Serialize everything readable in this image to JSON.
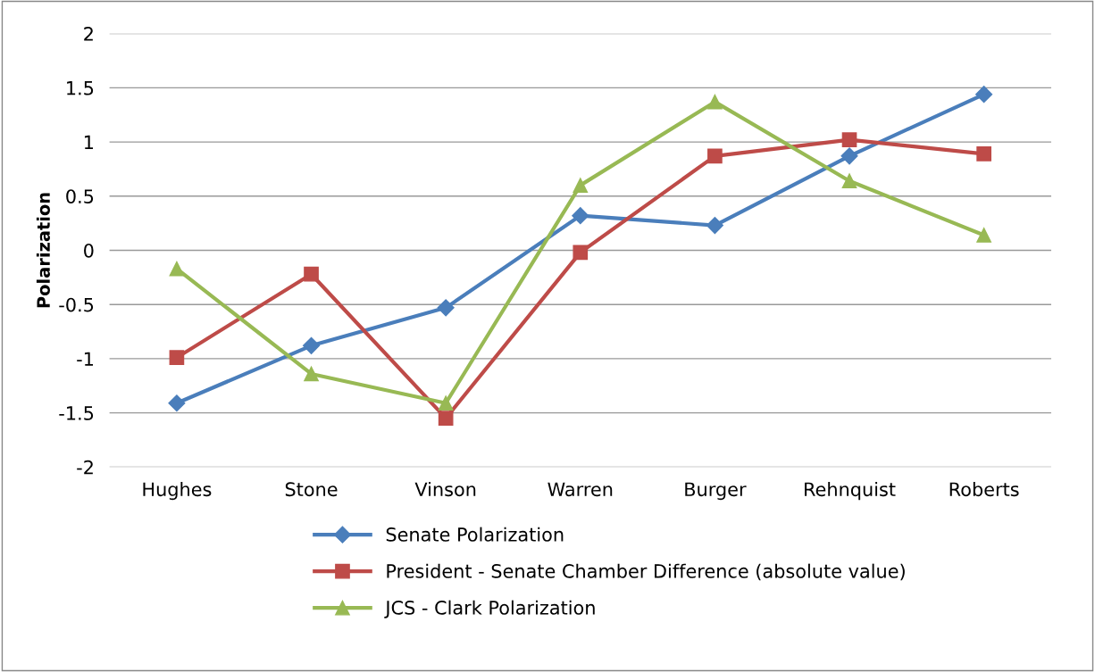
{
  "chart_data": {
    "type": "line",
    "ylabel": "Polarization",
    "categories": [
      "Hughes",
      "Stone",
      "Vinson",
      "Warren",
      "Burger",
      "Rehnquist",
      "Roberts"
    ],
    "series": [
      {
        "name": "Senate Polarization",
        "color": "#4a7ebb",
        "marker": "diamond",
        "values": [
          -1.41,
          -0.88,
          -0.53,
          0.32,
          0.23,
          0.87,
          1.44
        ]
      },
      {
        "name": "President - Senate Chamber Difference (absolute value)",
        "color": "#be4b48",
        "marker": "square",
        "values": [
          -0.99,
          -0.22,
          -1.55,
          -0.02,
          0.87,
          1.02,
          0.89
        ]
      },
      {
        "name": "JCS - Clark Polarization",
        "color": "#98b954",
        "marker": "triangle",
        "values": [
          -0.17,
          -1.14,
          -1.41,
          0.6,
          1.37,
          0.64,
          0.14
        ]
      }
    ],
    "ylim": [
      -2,
      2
    ],
    "yticks": [
      -2,
      {
        "value": -1.5,
        "label": "-1.5"
      },
      -1,
      {
        "value": -0.5,
        "label": "-0.5"
      },
      0,
      0.5,
      1,
      1.5,
      2
    ],
    "grid": "y",
    "legend": "bottom",
    "line_style": "solid"
  }
}
